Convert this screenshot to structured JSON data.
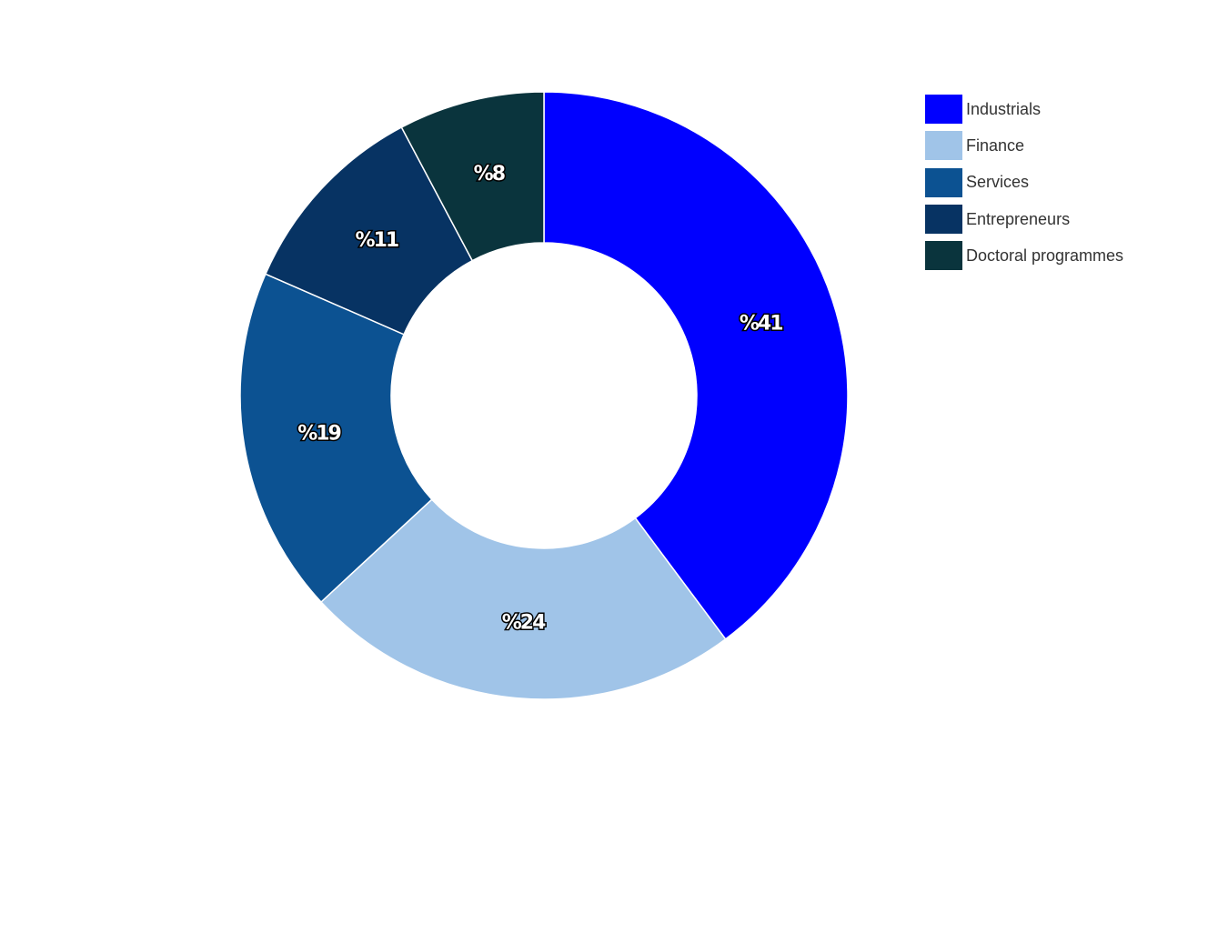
{
  "chart_data": {
    "type": "pie",
    "donut": true,
    "title": "",
    "label_format": "%{value}",
    "categories": [
      "Industrials",
      "Finance",
      "Services",
      "Entrepreneurs",
      "Doctoral programmes"
    ],
    "values": [
      41,
      24,
      19,
      11,
      8
    ],
    "value_labels": [
      "%41",
      "%24",
      "%19",
      "%11",
      "%8"
    ],
    "colors": [
      "#0000ff",
      "#a0c4e8",
      "#0c5292",
      "#073363",
      "#0a343d"
    ],
    "legend_position": "top-right",
    "start_angle": "12 o'clock",
    "direction": "clockwise"
  }
}
